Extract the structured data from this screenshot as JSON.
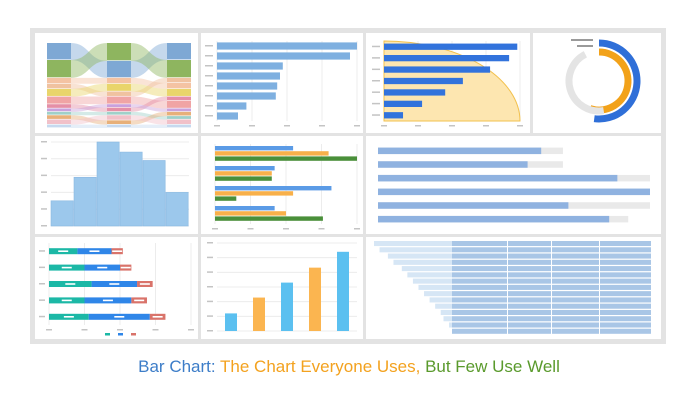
{
  "caption": {
    "part1": "Bar Chart: ",
    "part2": "The Chart Everyone Uses, ",
    "part3": "But Few Use Well",
    "colors": [
      "#3d7dc8",
      "#f3a21f",
      "#5a9a2c"
    ]
  },
  "chart_data": [
    {
      "type": "bar",
      "variant": "parallel-sets",
      "columns": 3,
      "stacked": true,
      "segment_heights": [
        0.2,
        0.21,
        0.07,
        0.06,
        0.09,
        0.09,
        0.05,
        0.04,
        0.04,
        0.05,
        0.06,
        0.04
      ],
      "colors": [
        "#7ea8d4",
        "#8eb55f",
        "#f4c3a3",
        "#f0c2a0",
        "#e9d56b",
        "#f0a4a4",
        "#e58fa6",
        "#c9a1dc",
        "#9fd0c9",
        "#e7b07a",
        "#f1c1c9",
        "#c6d9ef"
      ]
    },
    {
      "type": "bar",
      "orientation": "horizontal",
      "values": [
        100,
        95,
        47,
        45,
        43,
        42,
        21,
        15
      ],
      "xlim": [
        0,
        100
      ],
      "color": "#7fb0e0"
    },
    {
      "type": "bar",
      "orientation": "horizontal",
      "values": [
        98,
        92,
        78,
        58,
        45,
        28,
        14
      ],
      "xlim": [
        0,
        100
      ],
      "color": "#3273dc",
      "background_shape": "quarter-circle",
      "background_color": "#fde6b0"
    },
    {
      "type": "pie",
      "variant": "radial-bar",
      "rings": [
        {
          "value": 0.52,
          "color": "#2f6fd8"
        },
        {
          "value": 0.55,
          "color": "#f2a21a"
        },
        {
          "value": 0.42,
          "color": "#e4e4e4"
        }
      ]
    },
    {
      "type": "bar",
      "variant": "histogram",
      "values": [
        30,
        58,
        100,
        88,
        78,
        40
      ],
      "ylim": [
        0,
        100
      ],
      "color": "#9cc8ec"
    },
    {
      "type": "bar",
      "orientation": "horizontal",
      "variant": "grouped",
      "groups": 4,
      "series": [
        {
          "color": "#5b9be6",
          "values": [
            55,
            42,
            82,
            42
          ]
        },
        {
          "color": "#f8b04a",
          "values": [
            80,
            40,
            55,
            50
          ]
        },
        {
          "color": "#4a8f3a",
          "values": [
            100,
            40,
            15,
            76
          ]
        }
      ],
      "xlim": [
        0,
        100
      ]
    },
    {
      "type": "bar",
      "orientation": "horizontal",
      "variant": "bullet",
      "values": [
        60,
        55,
        88,
        100,
        70,
        85
      ],
      "targets": [
        68,
        68,
        100,
        100,
        100,
        92
      ],
      "xlim": [
        0,
        100
      ],
      "color": "#8fb2e0"
    },
    {
      "type": "bar",
      "orientation": "horizontal",
      "variant": "stacked",
      "series": [
        {
          "color": "#1cb8a6",
          "values": [
            20,
            25,
            30,
            25,
            28
          ]
        },
        {
          "color": "#2f86e8",
          "values": [
            24,
            25,
            32,
            33,
            43
          ]
        },
        {
          "color": "#d9736a",
          "values": [
            8,
            8,
            11,
            11,
            11
          ]
        }
      ],
      "xlim": [
        0,
        100
      ]
    },
    {
      "type": "bar",
      "values": [
        20,
        38,
        55,
        72,
        90
      ],
      "colors": [
        "#5bc0f0",
        "#fbb550",
        "#5bc0f0",
        "#fbb550",
        "#5bc0f0"
      ],
      "ylim": [
        0,
        100
      ]
    },
    {
      "type": "bar",
      "orientation": "horizontal",
      "variant": "stacked-segmented",
      "rows": 15,
      "lead_values": [
        70,
        72,
        75,
        77,
        80,
        82,
        84,
        86,
        88,
        90,
        92,
        94,
        95,
        97,
        99
      ],
      "light_color": "#d6e6f5",
      "dark_color": "#a9c6e6"
    }
  ]
}
